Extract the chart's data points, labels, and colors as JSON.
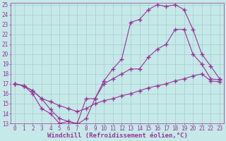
{
  "xlabel": "Windchill (Refroidissement éolien,°C)",
  "ylabel": "",
  "xlim": [
    -0.5,
    23.5
  ],
  "ylim": [
    13,
    25.2
  ],
  "background_color": "#c5e8e8",
  "grid_color": "#a8cccc",
  "line_color": "#993399",
  "curve1_x": [
    0,
    1,
    2,
    3,
    4,
    5,
    6,
    7,
    8,
    9,
    10,
    11,
    12,
    13,
    14,
    15,
    16,
    17,
    18,
    19,
    20,
    21,
    22,
    23
  ],
  "curve1_y": [
    17.0,
    16.8,
    16.3,
    15.5,
    14.4,
    13.5,
    13.2,
    13.0,
    15.5,
    15.5,
    17.0,
    17.5,
    18.0,
    18.5,
    18.5,
    19.7,
    20.5,
    21.0,
    22.5,
    22.5,
    20.0,
    19.0,
    17.5,
    17.4
  ],
  "curve2_x": [
    0,
    1,
    2,
    3,
    4,
    5,
    6,
    7,
    8,
    9,
    10,
    11,
    12,
    13,
    14,
    15,
    16,
    17,
    18,
    19,
    20,
    21,
    22,
    23
  ],
  "curve2_y": [
    17.0,
    16.8,
    16.0,
    14.5,
    14.0,
    13.0,
    13.2,
    12.9,
    13.5,
    15.5,
    17.3,
    18.5,
    19.5,
    23.2,
    23.5,
    24.5,
    25.0,
    24.8,
    25.0,
    24.5,
    22.5,
    20.0,
    18.8,
    17.5
  ],
  "curve3_x": [
    0,
    1,
    2,
    3,
    4,
    5,
    6,
    7,
    8,
    9,
    10,
    11,
    12,
    13,
    14,
    15,
    16,
    17,
    18,
    19,
    20,
    21,
    22,
    23
  ],
  "curve3_y": [
    17.0,
    16.8,
    16.3,
    15.5,
    15.2,
    14.8,
    14.5,
    14.2,
    14.5,
    15.0,
    15.3,
    15.5,
    15.8,
    16.0,
    16.3,
    16.6,
    16.8,
    17.0,
    17.3,
    17.5,
    17.8,
    18.0,
    17.3,
    17.2
  ],
  "xticks": [
    0,
    1,
    2,
    3,
    4,
    5,
    6,
    7,
    8,
    9,
    10,
    11,
    12,
    13,
    14,
    15,
    16,
    17,
    18,
    19,
    20,
    21,
    22,
    23
  ],
  "yticks": [
    13,
    14,
    15,
    16,
    17,
    18,
    19,
    20,
    21,
    22,
    23,
    24,
    25
  ],
  "marker": "+",
  "markersize": 4,
  "linewidth": 0.8,
  "xlabel_fontsize": 6.5,
  "tick_fontsize": 5.5
}
